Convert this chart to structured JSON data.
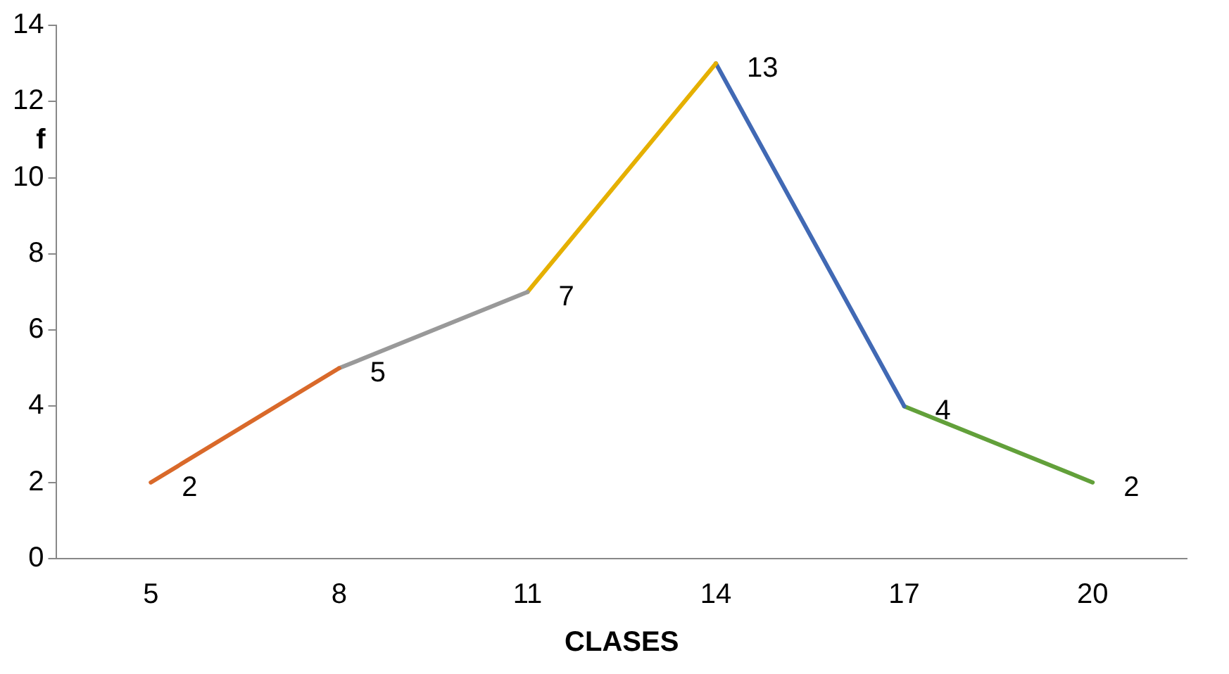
{
  "chart_data": {
    "type": "line",
    "xlabel": "CLASES",
    "ylabel": "f",
    "categories": [
      "5",
      "8",
      "11",
      "14",
      "17",
      "20"
    ],
    "series": [
      {
        "color": "#d9692a",
        "values": [
          2,
          5,
          null,
          null,
          null,
          null
        ],
        "value_labels": [
          "2",
          "5",
          null,
          null,
          null,
          null
        ]
      },
      {
        "color": "#999999",
        "values": [
          null,
          5,
          7,
          null,
          null,
          null
        ],
        "value_labels": [
          null,
          null,
          "7",
          null,
          null,
          null
        ]
      },
      {
        "color": "#e5b000",
        "values": [
          null,
          null,
          7,
          13,
          null,
          null
        ],
        "value_labels": [
          null,
          null,
          null,
          "13",
          null,
          null
        ]
      },
      {
        "color": "#4169b4",
        "values": [
          null,
          null,
          null,
          13,
          4,
          null
        ],
        "value_labels": [
          null,
          null,
          null,
          null,
          "4",
          null
        ]
      },
      {
        "color": "#62a03a",
        "values": [
          null,
          null,
          null,
          null,
          4,
          2
        ],
        "value_labels": [
          null,
          null,
          null,
          null,
          null,
          "2"
        ]
      }
    ],
    "ylim": [
      0,
      14
    ],
    "yticks": [
      0,
      2,
      4,
      6,
      8,
      10,
      12,
      14
    ],
    "grid": false,
    "legend": false,
    "marker": "none",
    "line_style": "solid"
  }
}
